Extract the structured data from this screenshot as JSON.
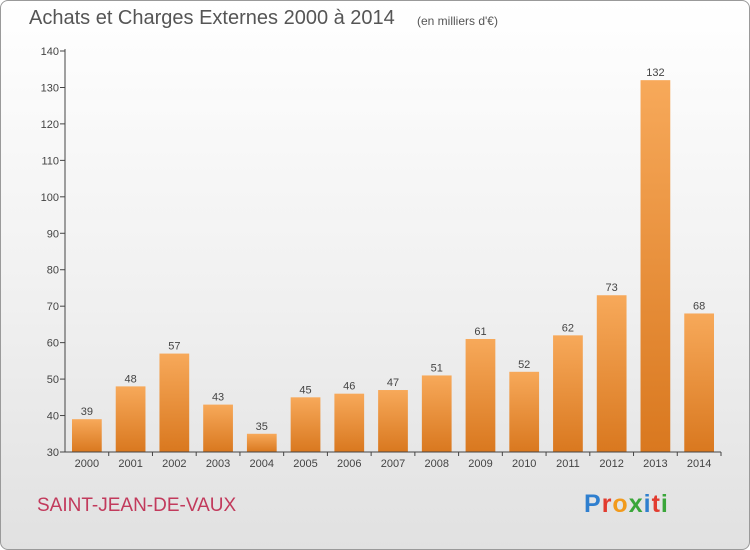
{
  "header": {
    "title": "Achats et Charges Externes 2000 à 2014",
    "unit": "(en milliers d'€)"
  },
  "footer": {
    "commune": "SAINT-JEAN-DE-VAUX",
    "logo_text": "Proxiti",
    "logo_colors": [
      "#2f7fcf",
      "#e23b2f",
      "#f29a1c",
      "#3aa63a",
      "#2f7fcf",
      "#e23b2f",
      "#3aa63a"
    ]
  },
  "colors": {
    "bar": "#f0a050",
    "bar_dark": "#d97a22",
    "axis": "#444444",
    "grid": "#dddddd"
  },
  "chart_data": {
    "type": "bar",
    "title": "Achats et Charges Externes 2000 à 2014",
    "subtitle": "(en milliers d'€)",
    "categories": [
      "2000",
      "2001",
      "2002",
      "2003",
      "2004",
      "2005",
      "2006",
      "2007",
      "2008",
      "2009",
      "2010",
      "2011",
      "2012",
      "2013",
      "2014"
    ],
    "values": [
      39,
      48,
      57,
      43,
      35,
      45,
      46,
      47,
      51,
      61,
      52,
      62,
      73,
      132,
      68
    ],
    "ylim": [
      30,
      140
    ],
    "yticks": [
      30,
      40,
      50,
      60,
      70,
      80,
      90,
      100,
      110,
      120,
      130,
      140
    ],
    "grid": false,
    "data_labels": true
  }
}
